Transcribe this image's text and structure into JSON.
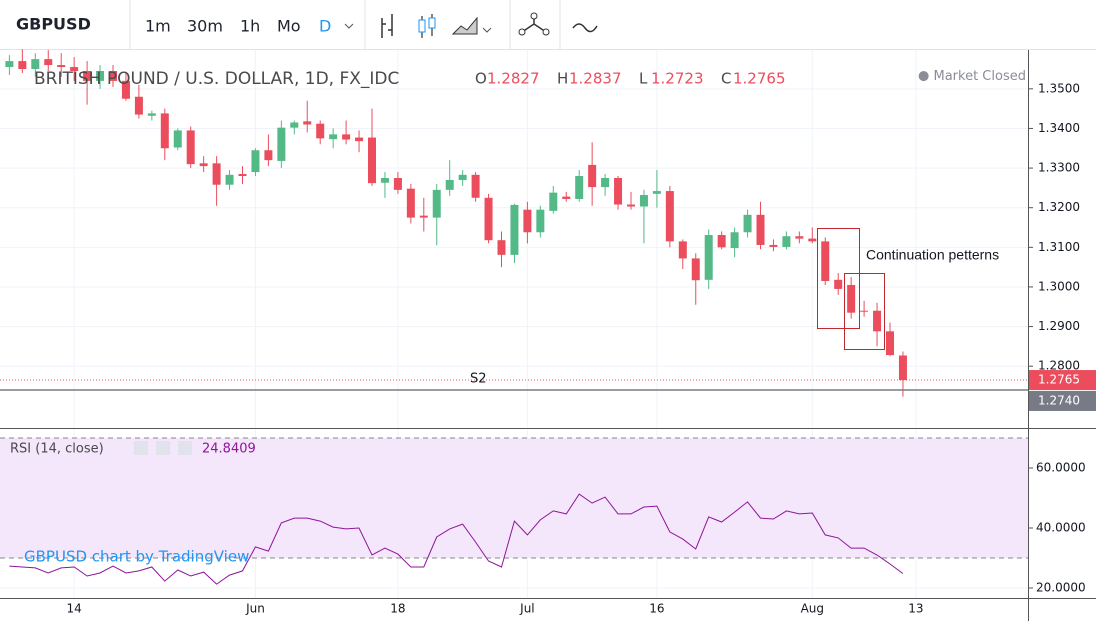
{
  "toolbar": {
    "symbol": "GBPUSD",
    "intervals": [
      "1m",
      "30m",
      "1h",
      "Mo",
      "D"
    ]
  },
  "status": "Market Closed",
  "watermark": "GBPUSD chart by TradingView",
  "chart_data": [
    {
      "type": "candlestick",
      "title": "BRITISH POUND / U.S. DOLLAR, 1D, FX_IDC",
      "ohlc_labels": [
        "O",
        "H",
        "L",
        "C"
      ],
      "categories": [
        null,
        null,
        null,
        null,
        null,
        "14",
        null,
        null,
        null,
        null,
        null,
        null,
        null,
        null,
        null,
        null,
        null,
        null,
        null,
        "Jun",
        null,
        null,
        null,
        null,
        null,
        null,
        null,
        null,
        null,
        null,
        "18",
        null,
        null,
        null,
        null,
        null,
        null,
        null,
        null,
        null,
        "Jul",
        null,
        null,
        null,
        null,
        null,
        null,
        null,
        null,
        null,
        "16",
        null,
        null,
        null,
        null,
        null,
        null,
        null,
        null,
        null,
        null,
        null,
        "Aug",
        null,
        null,
        null,
        null,
        null,
        null,
        null,
        "13"
      ],
      "open": [
        1.3555,
        1.357,
        1.355,
        1.3575,
        1.356,
        1.3555,
        1.3545,
        1.352,
        1.3545,
        1.352,
        1.348,
        1.3432,
        1.3438,
        1.3352,
        1.3395,
        1.3312,
        1.3312,
        1.3258,
        1.3285,
        1.329,
        1.3345,
        1.3318,
        1.3402,
        1.3418,
        1.3412,
        1.3373,
        1.3385,
        1.3377,
        1.3377,
        1.3263,
        1.3275,
        1.3248,
        1.318,
        1.3175,
        1.3245,
        1.327,
        1.3283,
        1.3225,
        1.3118,
        1.3081,
        1.3195,
        1.3138,
        1.3192,
        1.3228,
        1.3222,
        1.3308,
        1.3252,
        1.3275,
        1.3208,
        1.3203,
        1.3235,
        1.3242,
        1.3115,
        1.3072,
        1.3018,
        1.3131,
        1.3098,
        1.3138,
        1.3182,
        1.3106,
        1.3101,
        1.3128,
        1.3122,
        1.3115,
        1.3018,
        1.3005,
        1.294,
        1.294,
        1.2888,
        1.2827,
        null
      ],
      "high": [
        1.3585,
        1.36,
        1.359,
        1.3598,
        1.359,
        1.358,
        1.357,
        1.356,
        1.356,
        1.354,
        1.351,
        1.3445,
        1.345,
        1.34,
        1.3405,
        1.333,
        1.333,
        1.3295,
        1.3305,
        1.335,
        1.3385,
        1.342,
        1.342,
        1.347,
        1.342,
        1.34,
        1.342,
        1.3395,
        1.345,
        1.329,
        1.329,
        1.326,
        1.3225,
        1.326,
        1.332,
        1.3295,
        1.329,
        1.3235,
        1.314,
        1.321,
        1.3215,
        1.3205,
        1.3255,
        1.324,
        1.3295,
        1.3365,
        1.3285,
        1.328,
        1.324,
        1.3245,
        1.3295,
        1.3255,
        1.312,
        1.3085,
        1.3145,
        1.314,
        1.315,
        1.3195,
        1.3215,
        1.312,
        1.314,
        1.314,
        1.315,
        1.3125,
        1.3035,
        1.3025,
        1.2965,
        1.296,
        1.291,
        1.2837,
        null
      ],
      "low": [
        1.3535,
        1.354,
        1.353,
        1.3545,
        1.353,
        1.352,
        1.346,
        1.35,
        1.3505,
        1.347,
        1.3425,
        1.342,
        1.332,
        1.3345,
        1.33,
        1.329,
        1.3205,
        1.3245,
        1.326,
        1.328,
        1.3305,
        1.33,
        1.3385,
        1.339,
        1.336,
        1.335,
        1.336,
        1.334,
        1.3255,
        1.3225,
        1.3235,
        1.316,
        1.314,
        1.3105,
        1.323,
        1.3255,
        1.3215,
        1.311,
        1.305,
        1.306,
        1.311,
        1.3125,
        1.3185,
        1.3215,
        1.3215,
        1.3205,
        1.323,
        1.3195,
        1.3195,
        1.311,
        1.32,
        1.31,
        1.3045,
        1.2955,
        1.2995,
        1.3095,
        1.3075,
        1.3125,
        1.3095,
        1.309,
        1.3095,
        1.311,
        1.311,
        1.3005,
        1.298,
        1.292,
        1.2925,
        1.285,
        1.2825,
        1.2723,
        null
      ],
      "close": [
        1.357,
        1.355,
        1.3575,
        1.356,
        1.3555,
        1.3545,
        1.352,
        1.3545,
        1.352,
        1.3475,
        1.3435,
        1.3438,
        1.335,
        1.3395,
        1.331,
        1.3305,
        1.3258,
        1.3283,
        1.328,
        1.3345,
        1.332,
        1.3402,
        1.3415,
        1.341,
        1.3375,
        1.3385,
        1.3372,
        1.3368,
        1.3262,
        1.3275,
        1.3245,
        1.3175,
        1.3175,
        1.3245,
        1.327,
        1.3283,
        1.3225,
        1.3118,
        1.3081,
        1.3207,
        1.3138,
        1.3195,
        1.3238,
        1.3222,
        1.328,
        1.3252,
        1.3275,
        1.3208,
        1.3203,
        1.3232,
        1.3242,
        1.3115,
        1.3072,
        1.3017,
        1.3131,
        1.31,
        1.3138,
        1.3182,
        1.3106,
        1.3101,
        1.3128,
        1.3122,
        1.3115,
        1.3015,
        1.2995,
        1.2935,
        1.2938,
        1.2888,
        1.2828,
        1.2765,
        null
      ],
      "up_color": "#53b987",
      "down_color": "#eb4d5c",
      "ylim": [
        1.2644,
        1.3598
      ],
      "yticks": [
        {
          "value": 1.28,
          "label": "1.2800"
        },
        {
          "value": 1.29,
          "label": "1.2900"
        },
        {
          "value": 1.3,
          "label": "1.3000"
        },
        {
          "value": 1.31,
          "label": "1.3100"
        },
        {
          "value": 1.32,
          "label": "1.3200"
        },
        {
          "value": 1.33,
          "label": "1.3300"
        },
        {
          "value": 1.34,
          "label": "1.3400"
        },
        {
          "value": 1.35,
          "label": "1.3500"
        }
      ],
      "hlines": [
        {
          "name": "S2",
          "value": 1.274,
          "value_label": "1.2740",
          "color": "#787b86"
        }
      ],
      "annotation": "Continuation petterns",
      "grid": true
    },
    {
      "type": "line",
      "title": "RSI (14, close)",
      "color": "#8e1599",
      "band_color": "#f4e6fb",
      "bands": [
        30,
        70
      ],
      "values": [
        27.3,
        27.0,
        26.7,
        25.0,
        26.7,
        27.0,
        24.0,
        25.0,
        27.3,
        25.0,
        25.7,
        27.0,
        22.3,
        26.0,
        24.0,
        25.3,
        21.3,
        24.3,
        25.7,
        33.7,
        32.3,
        41.7,
        43.3,
        43.3,
        42.3,
        40.3,
        39.7,
        40.0,
        31.0,
        33.3,
        31.3,
        27.0,
        27.0,
        37.0,
        39.7,
        41.3,
        35.3,
        29.0,
        27.0,
        42.3,
        37.7,
        42.7,
        45.7,
        44.7,
        51.3,
        48.3,
        50.3,
        44.7,
        44.7,
        47.0,
        47.3,
        38.7,
        36.3,
        33.0,
        43.7,
        42.0,
        45.3,
        48.7,
        43.3,
        43.0,
        45.7,
        44.7,
        45.0,
        37.7,
        36.7,
        33.3,
        33.3,
        31.0,
        28.0,
        24.8409,
        null
      ],
      "ylim": [
        16.67,
        72.67
      ],
      "yticks": [
        {
          "value": 20,
          "label": "20.0000"
        },
        {
          "value": 40,
          "label": "40.0000"
        },
        {
          "value": 60,
          "label": "60.0000"
        }
      ],
      "grid": true
    }
  ]
}
